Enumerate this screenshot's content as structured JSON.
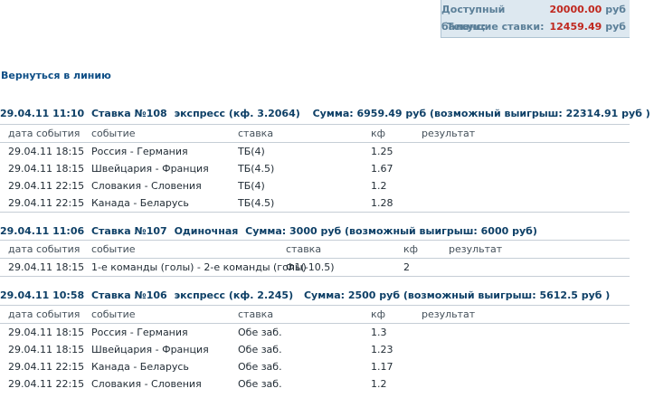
{
  "balance": {
    "available_label": "Доступный баланс:",
    "available_value": "20000.00",
    "current_label": "Текущие ставки:",
    "current_value": "12459.49",
    "currency": "руб"
  },
  "back_link": "Вернуться в линию",
  "bets": [
    {
      "datetime": "29.04.11 11:10",
      "number": "Ставка №108",
      "type": "экспресс (кф. 3.2064)",
      "sum": "Сумма: 6959.49 руб (возможный выигрыш: 22314.91 руб )",
      "headers": [
        "дата события",
        "событие",
        "ставка",
        "кф",
        "результат"
      ],
      "rows": [
        {
          "date": "29.04.11 18:15",
          "event": "Россия - Германия",
          "bet": "ТБ(4)",
          "kf": "1.25",
          "result": ""
        },
        {
          "date": "29.04.11 18:15",
          "event": "Швейцария - Франция",
          "bet": "ТБ(4.5)",
          "kf": "1.67",
          "result": ""
        },
        {
          "date": "29.04.11 22:15",
          "event": "Словакия - Словения",
          "bet": "ТБ(4)",
          "kf": "1.2",
          "result": ""
        },
        {
          "date": "29.04.11 22:15",
          "event": "Канада - Беларусь",
          "bet": "ТБ(4.5)",
          "kf": "1.28",
          "result": ""
        }
      ]
    },
    {
      "datetime": "29.04.11 11:06",
      "number": "Ставка №107",
      "type": "Одиночная",
      "sum": "Сумма: 3000 руб (возможный выигрыш: 6000 руб)",
      "headers": [
        "дата события",
        "событие",
        "ставка",
        "кф",
        "результат"
      ],
      "rows": [
        {
          "date": "29.04.11 18:15",
          "event": "1-е команды (голы) - 2-е команды (голы)",
          "bet": "Ф1(-10.5)",
          "kf": "2",
          "result": ""
        }
      ]
    },
    {
      "datetime": "29.04.11 10:58",
      "number": "Ставка №106",
      "type": "экспресс (кф. 2.245)",
      "sum": "Сумма: 2500 руб (возможный выигрыш: 5612.5 руб )",
      "headers": [
        "дата события",
        "событие",
        "ставка",
        "кф",
        "результат"
      ],
      "rows": [
        {
          "date": "29.04.11 18:15",
          "event": "Россия - Германия",
          "bet": "Обе заб.",
          "kf": "1.3",
          "result": ""
        },
        {
          "date": "29.04.11 18:15",
          "event": "Швейцария - Франция",
          "bet": "Обе заб.",
          "kf": "1.23",
          "result": ""
        },
        {
          "date": "29.04.11 22:15",
          "event": "Канада - Беларусь",
          "bet": "Обе заб.",
          "kf": "1.17",
          "result": ""
        },
        {
          "date": "29.04.11 22:15",
          "event": "Словакия - Словения",
          "bet": "Обе заб.",
          "kf": "1.2",
          "result": ""
        }
      ]
    }
  ]
}
